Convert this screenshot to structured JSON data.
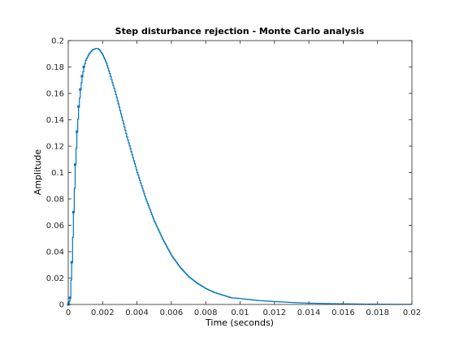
{
  "chart_data": {
    "type": "line",
    "title": "Step disturbance rejection - Monte Carlo analysis",
    "xlabel": "Time (seconds)",
    "ylabel": "Amplitude",
    "xlim": [
      0,
      0.02
    ],
    "ylim": [
      0,
      0.2
    ],
    "xticks": [
      0,
      0.002,
      0.004,
      0.006,
      0.008,
      0.01,
      0.012,
      0.014,
      0.016,
      0.018,
      0.02
    ],
    "xtick_labels": [
      "0",
      "0.002",
      "0.004",
      "0.006",
      "0.008",
      "0.01",
      "0.012",
      "0.014",
      "0.016",
      "0.018",
      "0.02"
    ],
    "yticks": [
      0,
      0.02,
      0.04,
      0.06,
      0.08,
      0.1,
      0.12,
      0.14,
      0.16,
      0.18,
      0.2
    ],
    "ytick_labels": [
      "0",
      "0.02",
      "0.04",
      "0.06",
      "0.08",
      "0.1",
      "0.12",
      "0.14",
      "0.16",
      "0.18",
      "0.2"
    ],
    "grid": false,
    "line_color": "#0072BD",
    "series": [
      {
        "style": "stairs",
        "x": [
          0,
          0.0001,
          0.0002,
          0.0003,
          0.0004,
          0.0005,
          0.0006,
          0.0007,
          0.0008,
          0.0009,
          0.001,
          0.0012,
          0.0014,
          0.0016,
          0.0017,
          0.0018,
          0.002,
          0.0022,
          0.0024,
          0.0026,
          0.0028,
          0.003,
          0.0032,
          0.0034,
          0.0036,
          0.0038,
          0.004,
          0.0045,
          0.005,
          0.0055,
          0.006,
          0.0065,
          0.007,
          0.0075,
          0.008,
          0.0085,
          0.009,
          0.0095,
          0.01,
          0.011,
          0.012,
          0.013,
          0.014,
          0.015,
          0.016,
          0.017,
          0.018,
          0.019,
          0.02
        ],
        "y": [
          0,
          0.005,
          0.032,
          0.07,
          0.106,
          0.131,
          0.15,
          0.163,
          0.173,
          0.18,
          0.185,
          0.19,
          0.193,
          0.194,
          0.194,
          0.193,
          0.189,
          0.183,
          0.175,
          0.166,
          0.157,
          0.147,
          0.137,
          0.127,
          0.118,
          0.109,
          0.1,
          0.08,
          0.063,
          0.049,
          0.037,
          0.028,
          0.021,
          0.016,
          0.012,
          0.009,
          0.007,
          0.005,
          0.0045,
          0.003,
          0.0022,
          0.0015,
          0.001,
          0.0007,
          0.0005,
          0.0003,
          0.0002,
          0.0001,
          0.0001
        ]
      }
    ]
  }
}
